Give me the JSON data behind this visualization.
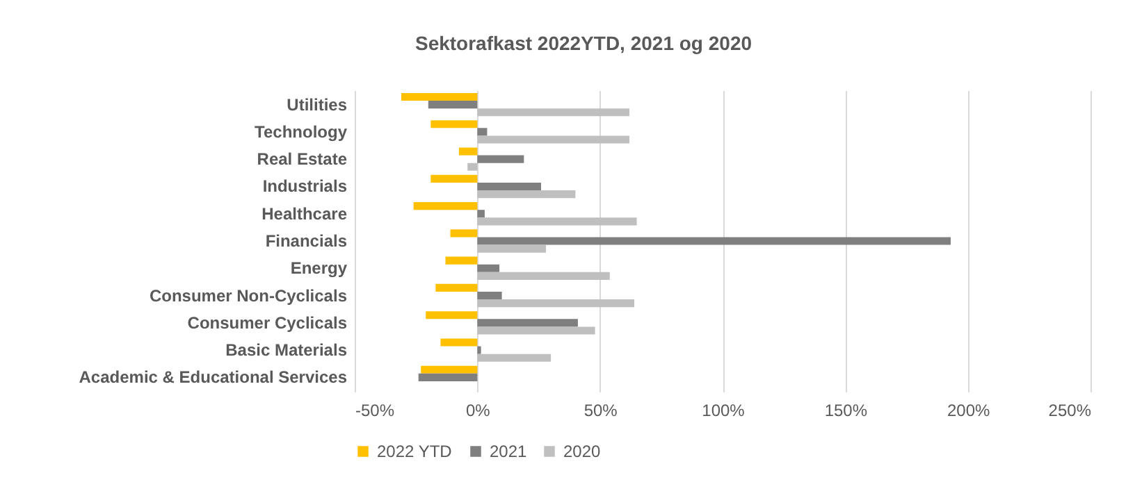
{
  "chart_data": {
    "type": "bar",
    "orientation": "horizontal",
    "title": "Sektorafkast 2022YTD, 2021 og 2020",
    "categories": [
      "Utilities",
      "Technology",
      "Real Estate",
      "Industrials",
      "Healthcare",
      "Financials",
      "Energy",
      "Consumer Non-Cyclicals",
      "Consumer Cyclicals",
      "Basic Materials",
      "Academic & Educational Services"
    ],
    "series": [
      {
        "name": "2022 YTD",
        "color": "#ffc000",
        "values": [
          -31,
          -19,
          -7.5,
          -19,
          -26,
          -11,
          -13,
          -17,
          -21,
          -15,
          -23
        ]
      },
      {
        "name": "2021",
        "color": "#7f7f7f",
        "values": [
          -20,
          4,
          19,
          26,
          3,
          193,
          9,
          10,
          41,
          1.5,
          -24
        ]
      },
      {
        "name": "2020",
        "color": "#bfbfbf",
        "values": [
          62,
          62,
          -4,
          40,
          65,
          28,
          54,
          64,
          48,
          30,
          null
        ]
      }
    ],
    "xlim": [
      -50,
      250
    ],
    "xticks": [
      {
        "value": -50,
        "label": "-50%"
      },
      {
        "value": 0,
        "label": "0%"
      },
      {
        "value": 50,
        "label": "50%"
      },
      {
        "value": 100,
        "label": "100%"
      },
      {
        "value": 150,
        "label": "150%"
      },
      {
        "value": 200,
        "label": "200%"
      },
      {
        "value": 250,
        "label": "250%"
      }
    ],
    "grid": "x",
    "legend": "bottom"
  }
}
